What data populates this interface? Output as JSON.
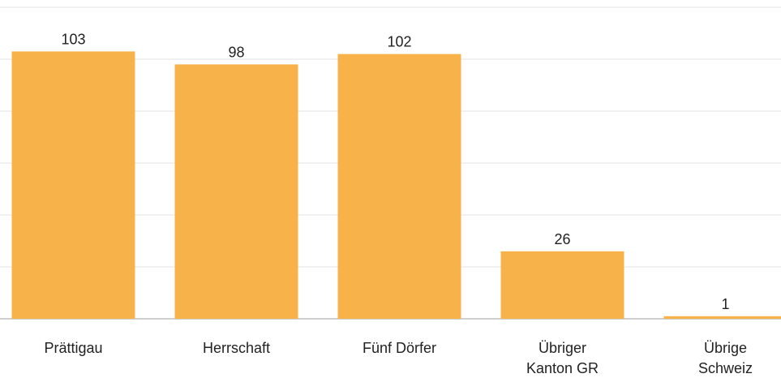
{
  "chart_data": {
    "type": "bar",
    "categories": [
      "Prättigau",
      "Herrschaft",
      "Fünf Dörfer",
      "Übriger\nKanton GR",
      "Übrige\nSchweiz"
    ],
    "values": [
      103,
      98,
      102,
      26,
      1
    ],
    "color": "#f7b24a",
    "ylim": [
      0,
      120
    ],
    "yticks": [
      0,
      20,
      40,
      60,
      80,
      100,
      120
    ],
    "grid": true
  }
}
